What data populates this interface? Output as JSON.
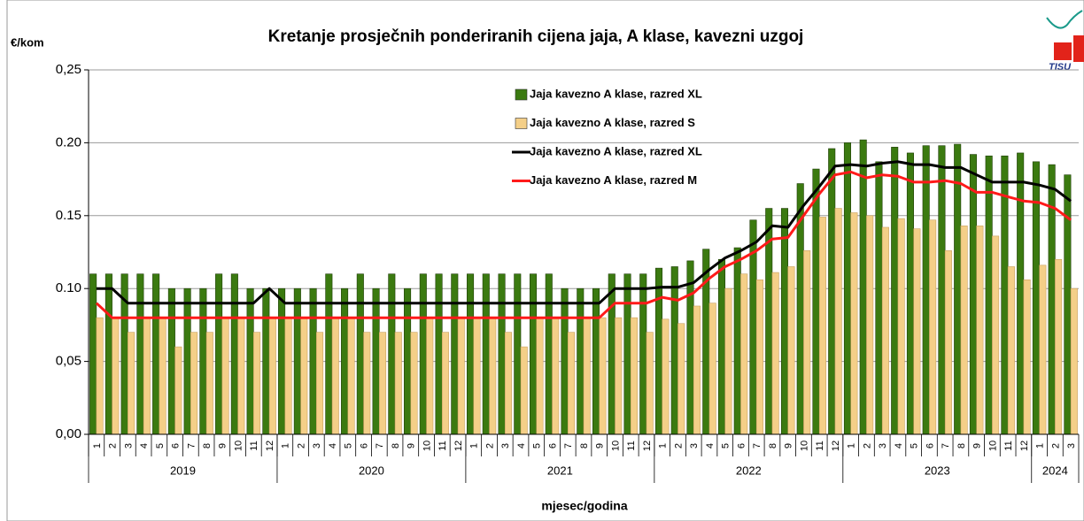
{
  "chart_data": {
    "type": "bar_line",
    "title": "Kretanje prosječnih ponderiranih cijena jaja, A klase, kavezni uzgoj",
    "y_label": "€/kom",
    "x_label": "mjesec/godina",
    "logo_text": "TISU",
    "categories": [
      "1",
      "2",
      "3",
      "4",
      "5",
      "6",
      "7",
      "8",
      "9",
      "10",
      "11",
      "12",
      "1",
      "2",
      "3",
      "4",
      "5",
      "6",
      "7",
      "8",
      "9",
      "10",
      "11",
      "12",
      "1",
      "2",
      "3",
      "4",
      "5",
      "6",
      "7",
      "8",
      "9",
      "10",
      "11",
      "12",
      "1",
      "2",
      "3",
      "4",
      "5",
      "6",
      "7",
      "8",
      "9",
      "10",
      "11",
      "12",
      "1",
      "2",
      "3",
      "4",
      "5",
      "6",
      "7",
      "8",
      "9",
      "10",
      "11",
      "12",
      "1",
      "2",
      "3"
    ],
    "years": [
      "2019",
      "2020",
      "2021",
      "2022",
      "2023",
      "2024"
    ],
    "ylim": [
      0,
      0.25
    ],
    "yticks": [
      {
        "value": 0,
        "label": "0,00"
      },
      {
        "value": 0.05,
        "label": "0,05"
      },
      {
        "value": 0.1,
        "label": "0.10"
      },
      {
        "value": 0.15,
        "label": "0.15"
      },
      {
        "value": 0.2,
        "label": "0.20"
      },
      {
        "value": 0.25,
        "label": "0,25"
      }
    ],
    "grid": true,
    "series": [
      {
        "name": "Jaja kavezno A klase, razred XL",
        "kind": "bar",
        "color": "#3b7a10",
        "values": [
          0.11,
          0.11,
          0.11,
          0.11,
          0.11,
          0.1,
          0.1,
          0.1,
          0.11,
          0.11,
          0.1,
          0.1,
          0.1,
          0.1,
          0.1,
          0.11,
          0.1,
          0.11,
          0.1,
          0.11,
          0.1,
          0.11,
          0.11,
          0.11,
          0.11,
          0.11,
          0.11,
          0.11,
          0.11,
          0.11,
          0.1,
          0.1,
          0.1,
          0.11,
          0.11,
          0.11,
          0.114,
          0.115,
          0.119,
          0.127,
          0.12,
          0.128,
          0.147,
          0.155,
          0.155,
          0.172,
          0.182,
          0.196,
          0.2,
          0.202,
          0.187,
          0.197,
          0.193,
          0.198,
          0.198,
          0.199,
          0.192,
          0.191,
          0.191,
          0.193,
          0.187,
          0.185,
          0.178
        ]
      },
      {
        "name": "Jaja kavezno A klase, razred S",
        "kind": "bar",
        "color": "#f4cf88",
        "values": [
          0.08,
          0.08,
          0.07,
          0.08,
          0.08,
          0.06,
          0.07,
          0.07,
          0.08,
          0.08,
          0.07,
          0.08,
          0.08,
          0.08,
          0.07,
          0.08,
          0.08,
          0.07,
          0.07,
          0.07,
          0.07,
          0.08,
          0.07,
          0.08,
          0.08,
          0.08,
          0.07,
          0.06,
          0.08,
          0.08,
          0.07,
          0.08,
          0.08,
          0.08,
          0.08,
          0.07,
          0.079,
          0.076,
          0.088,
          0.09,
          0.1,
          0.11,
          0.106,
          0.111,
          0.115,
          0.126,
          0.149,
          0.155,
          0.152,
          0.15,
          0.142,
          0.148,
          0.141,
          0.147,
          0.126,
          0.143,
          0.143,
          0.136,
          0.115,
          0.106,
          0.116,
          0.12,
          0.1
        ]
      },
      {
        "name": "Jaja kavezno A klase, razred XL",
        "kind": "line",
        "color": "#000000",
        "values": [
          0.1,
          0.1,
          0.09,
          0.09,
          0.09,
          0.09,
          0.09,
          0.09,
          0.09,
          0.09,
          0.09,
          0.1,
          0.09,
          0.09,
          0.09,
          0.09,
          0.09,
          0.09,
          0.09,
          0.09,
          0.09,
          0.09,
          0.09,
          0.09,
          0.09,
          0.09,
          0.09,
          0.09,
          0.09,
          0.09,
          0.09,
          0.09,
          0.09,
          0.1,
          0.1,
          0.1,
          0.101,
          0.101,
          0.104,
          0.113,
          0.121,
          0.126,
          0.132,
          0.143,
          0.142,
          0.157,
          0.17,
          0.184,
          0.185,
          0.184,
          0.186,
          0.187,
          0.185,
          0.185,
          0.183,
          0.183,
          0.178,
          0.173,
          0.173,
          0.173,
          0.171,
          0.168,
          0.16
        ]
      },
      {
        "name": "Jaja kavezno A klase, razred M",
        "kind": "line",
        "color": "#ff1a1a",
        "values": [
          0.09,
          0.08,
          0.08,
          0.08,
          0.08,
          0.08,
          0.08,
          0.08,
          0.08,
          0.08,
          0.08,
          0.08,
          0.08,
          0.08,
          0.08,
          0.08,
          0.08,
          0.08,
          0.08,
          0.08,
          0.08,
          0.08,
          0.08,
          0.08,
          0.08,
          0.08,
          0.08,
          0.08,
          0.08,
          0.08,
          0.08,
          0.08,
          0.08,
          0.09,
          0.09,
          0.09,
          0.094,
          0.092,
          0.097,
          0.107,
          0.115,
          0.12,
          0.126,
          0.134,
          0.135,
          0.15,
          0.165,
          0.178,
          0.18,
          0.176,
          0.178,
          0.177,
          0.173,
          0.173,
          0.174,
          0.172,
          0.166,
          0.166,
          0.163,
          0.16,
          0.159,
          0.155,
          0.147
        ]
      }
    ]
  }
}
